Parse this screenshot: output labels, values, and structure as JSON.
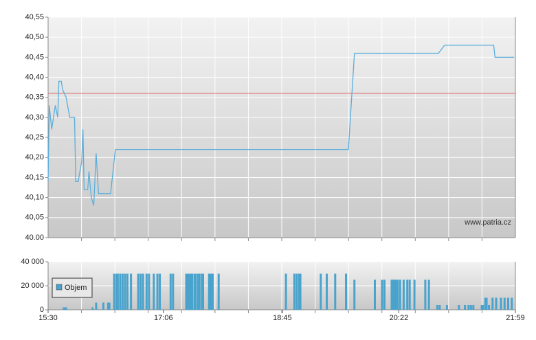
{
  "chart_data": [
    {
      "type": "line",
      "x": [
        "15:30",
        "15:31",
        "15:33",
        "15:36",
        "15:38",
        "15:39",
        "15:41",
        "15:42",
        "15:45",
        "15:48",
        "15:52",
        "15:53",
        "15:55",
        "15:58",
        "15:59",
        "16:00",
        "16:03",
        "16:04",
        "16:06",
        "16:08",
        "16:10",
        "16:12",
        "16:22",
        "16:26",
        "19:40",
        "19:45",
        "20:55",
        "21:00",
        "21:41",
        "21:42",
        "21:58"
      ],
      "values": [
        40.14,
        40.33,
        40.27,
        40.33,
        40.3,
        40.39,
        40.39,
        40.37,
        40.35,
        40.3,
        40.3,
        40.14,
        40.14,
        40.19,
        40.27,
        40.12,
        40.12,
        40.165,
        40.1,
        40.08,
        40.21,
        40.11,
        40.11,
        40.22,
        40.22,
        40.46,
        40.46,
        40.48,
        40.48,
        40.45,
        40.45
      ],
      "color": "#5aaedb",
      "xlim": [
        "15:30",
        "21:59"
      ],
      "ylim": [
        40.0,
        40.55
      ],
      "yticks": [
        {
          "value": 40.0,
          "label": "40.00"
        },
        {
          "value": 40.05,
          "label": "40,05"
        },
        {
          "value": 40.1,
          "label": "40,10"
        },
        {
          "value": 40.15,
          "label": "40,15"
        },
        {
          "value": 40.2,
          "label": "40,20"
        },
        {
          "value": 40.25,
          "label": "40,25"
        },
        {
          "value": 40.3,
          "label": "40,30"
        },
        {
          "value": 40.35,
          "label": "40,35"
        },
        {
          "value": 40.4,
          "label": "40,40"
        },
        {
          "value": 40.45,
          "label": "40,45"
        },
        {
          "value": 40.5,
          "label": "40,50"
        },
        {
          "value": 40.55,
          "label": "40,55"
        }
      ],
      "reference_line": {
        "value": 40.36,
        "color": "#e06060"
      },
      "watermark": "www.patria.cz",
      "grid": true
    },
    {
      "type": "bar",
      "x": [
        "15:43",
        "15:44",
        "15:45",
        "16:07",
        "16:10",
        "16:16",
        "16:20",
        "16:21",
        "16:25",
        "16:27",
        "16:28",
        "16:30",
        "16:32",
        "16:34",
        "16:36",
        "16:39",
        "16:45",
        "16:47",
        "16:49",
        "16:52",
        "16:54",
        "16:58",
        "17:01",
        "17:03",
        "17:12",
        "17:14",
        "17:25",
        "17:26",
        "17:27",
        "17:28",
        "17:29",
        "17:30",
        "17:32",
        "17:33",
        "17:35",
        "17:36",
        "17:38",
        "17:39",
        "17:44",
        "17:45",
        "17:46",
        "17:47",
        "17:52",
        "18:48",
        "18:55",
        "18:57",
        "18:59",
        "19:00",
        "19:17",
        "19:22",
        "19:29",
        "19:38",
        "19:45",
        "20:02",
        "20:08",
        "20:10",
        "20:16",
        "20:17",
        "20:18",
        "20:19",
        "20:20",
        "20:21",
        "20:23",
        "20:26",
        "20:29",
        "20:31",
        "20:35",
        "20:44",
        "20:47",
        "20:54",
        "20:56",
        "21:02",
        "21:12",
        "21:17",
        "21:20",
        "21:22",
        "21:24",
        "21:31",
        "21:32",
        "21:34",
        "21:35",
        "21:37",
        "21:40",
        "21:43",
        "21:47",
        "21:50",
        "21:53",
        "21:56"
      ],
      "series": [
        {
          "name": "Objem",
          "color": "#4aa3cc",
          "values": [
            2000,
            2000,
            2000,
            2000,
            6000,
            6000,
            6000,
            6000,
            30000,
            30000,
            30000,
            30000,
            30000,
            30000,
            30000,
            30000,
            30000,
            30000,
            30000,
            30000,
            30000,
            30000,
            30000,
            30000,
            30000,
            30000,
            30000,
            30000,
            30000,
            30000,
            30000,
            30000,
            30000,
            30000,
            30000,
            30000,
            30000,
            30000,
            30000,
            30000,
            30000,
            30000,
            30000,
            30000,
            30000,
            30000,
            30000,
            30000,
            30000,
            30000,
            30000,
            30000,
            25000,
            25000,
            25000,
            25000,
            25000,
            25000,
            25000,
            25000,
            25000,
            25000,
            25000,
            25000,
            25000,
            25000,
            25000,
            25000,
            25000,
            4000,
            4000,
            4000,
            4000,
            4000,
            4000,
            4000,
            4000,
            4000,
            4000,
            10000,
            10000,
            4000,
            10000,
            10000,
            10000,
            10000,
            10000,
            10000
          ]
        }
      ],
      "xlim": [
        "15:30",
        "21:59"
      ],
      "xticks": [
        "15:30",
        "17:06",
        "18:45",
        "20:22",
        "21:59"
      ],
      "ylim": [
        0,
        40000
      ],
      "yticks": [
        0,
        {
          "value": 20000,
          "label": "20 000"
        },
        {
          "value": 40000,
          "label": "40 000"
        }
      ],
      "grid": true
    }
  ]
}
